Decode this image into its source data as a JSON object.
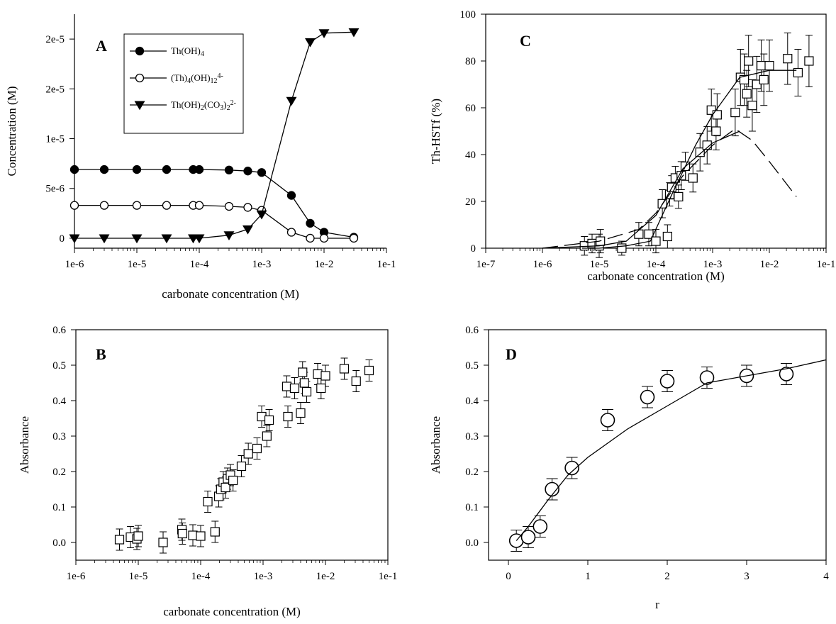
{
  "figure_title": "",
  "chart_data": [
    {
      "id": "A",
      "panel_label": "A",
      "type": "line",
      "xscale": "log",
      "xlim": [
        1e-06,
        0.1
      ],
      "ylim": [
        -1e-06,
        2.25e-05
      ],
      "xlabel": "carbonate concentration (M)",
      "ylabel": "Concentration (M)",
      "x_tick_labels": [
        "1e-6",
        "1e-5",
        "1e-4",
        "1e-3",
        "1e-2",
        "1e-1"
      ],
      "x_tick_values": [
        1e-06,
        1e-05,
        0.0001,
        0.001,
        0.01,
        0.1
      ],
      "y_tick_labels": [
        "0",
        "5e-6",
        "1e-5",
        "2e-5",
        "2e-5"
      ],
      "y_tick_values": [
        0,
        5e-06,
        1e-05,
        1.5e-05,
        2e-05
      ],
      "grid": false,
      "legend_position": "top-center",
      "legend": [
        {
          "marker": "filled-circle",
          "parts": [
            [
              "Th(OH)",
              ""
            ],
            [
              "4",
              "sub"
            ]
          ]
        },
        {
          "marker": "open-circle",
          "parts": [
            [
              "(Th)",
              ""
            ],
            [
              "4",
              "sub"
            ],
            [
              "(OH)",
              ""
            ],
            [
              "12",
              "sub"
            ],
            [
              "4-",
              "sup"
            ]
          ]
        },
        {
          "marker": "filled-triangle-down",
          "parts": [
            [
              "Th(OH)",
              ""
            ],
            [
              "2",
              "sub"
            ],
            [
              "(CO",
              ""
            ],
            [
              "3",
              "sub"
            ],
            [
              ")",
              ""
            ],
            [
              "2",
              "sub"
            ],
            [
              "2-",
              "sup"
            ]
          ]
        }
      ],
      "series": [
        {
          "marker": "filled-circle",
          "x": [
            1e-06,
            3e-06,
            1e-05,
            3e-05,
            8e-05,
            0.0001,
            0.0003,
            0.0006,
            0.001,
            0.003,
            0.006,
            0.01,
            0.03
          ],
          "y": [
            6.9e-06,
            6.9e-06,
            6.9e-06,
            6.9e-06,
            6.9e-06,
            6.9e-06,
            6.85e-06,
            6.75e-06,
            6.6e-06,
            4.3e-06,
            1.5e-06,
            6e-07,
            1e-07
          ]
        },
        {
          "marker": "open-circle",
          "x": [
            1e-06,
            3e-06,
            1e-05,
            3e-05,
            8e-05,
            0.0001,
            0.0003,
            0.0006,
            0.001,
            0.003,
            0.006,
            0.01,
            0.03
          ],
          "y": [
            3.3e-06,
            3.3e-06,
            3.3e-06,
            3.3e-06,
            3.3e-06,
            3.3e-06,
            3.2e-06,
            3.1e-06,
            2.8e-06,
            6e-07,
            0,
            0,
            0
          ]
        },
        {
          "marker": "filled-triangle-down",
          "x": [
            1e-06,
            3e-06,
            1e-05,
            3e-05,
            8e-05,
            0.0001,
            0.0003,
            0.0006,
            0.001,
            0.003,
            0.006,
            0.01,
            0.03
          ],
          "y": [
            0,
            0,
            0,
            0,
            0,
            0,
            3e-07,
            9e-07,
            2.4e-06,
            1.38e-05,
            1.97e-05,
            2.06e-05,
            2.07e-05
          ]
        }
      ]
    },
    {
      "id": "C",
      "panel_label": "C",
      "type": "scatter",
      "xscale": "log",
      "xlim": [
        1e-07,
        0.1
      ],
      "ylim": [
        0,
        100
      ],
      "xlabel": "carbonate concentration (M)",
      "ylabel": "Th-HSTf (%)",
      "x_tick_labels": [
        "1e-7",
        "1e-6",
        "1e-5",
        "1e-4",
        "1e-3",
        "1e-2",
        "1e-1"
      ],
      "x_tick_values": [
        1e-07,
        1e-06,
        1e-05,
        0.0001,
        0.001,
        0.01,
        0.1
      ],
      "y_tick_labels": [
        "0",
        "20",
        "40",
        "60",
        "80",
        "100"
      ],
      "y_tick_values": [
        0,
        20,
        40,
        60,
        80,
        100
      ],
      "grid": false,
      "series": [
        {
          "marker": "open-square",
          "x": [
            5.5e-06,
            7.5e-06,
            1e-05,
            1.05e-05,
            2.5e-05,
            5e-05,
            7.5e-05,
            0.0001,
            0.00013,
            0.00016,
            0.000175,
            0.00019,
            0.00022,
            0.00025,
            0.00028,
            0.00033,
            0.00045,
            0.0006,
            0.0008,
            0.00095,
            0.00115,
            0.0012,
            0.0025,
            0.0031,
            0.0036,
            0.004,
            0.0043,
            0.005,
            0.006,
            0.0072,
            0.008,
            0.01,
            0.021,
            0.032,
            0.05
          ],
          "y": [
            1,
            2,
            1,
            3,
            0,
            6,
            6,
            3,
            19,
            5,
            23,
            26,
            30,
            22,
            31,
            35,
            30,
            41,
            44,
            59,
            50,
            57,
            58,
            73,
            72,
            66,
            80,
            61,
            70,
            78,
            72,
            78,
            81,
            75,
            80
          ],
          "err": [
            4,
            4,
            5,
            5,
            3,
            5,
            5,
            5,
            6,
            5,
            5,
            5,
            5,
            5,
            6,
            6,
            6,
            8,
            8,
            9,
            8,
            9,
            10,
            12,
            11,
            10,
            11,
            11,
            12,
            11,
            11,
            11,
            11,
            10,
            11
          ]
        },
        {
          "style": "solid",
          "x": [
            5e-06,
            1e-05,
            3e-05,
            8e-05,
            0.0002,
            0.0005,
            0.001,
            0.003,
            0.01,
            0.03
          ],
          "y": [
            0,
            0,
            1,
            3,
            24,
            44,
            57,
            73,
            76,
            76
          ]
        },
        {
          "style": "solid",
          "x": [
            1e-06,
            1e-05,
            3e-05,
            0.0001,
            0.0003,
            0.001,
            0.003
          ],
          "y": [
            0,
            1,
            3,
            14,
            34,
            45,
            50
          ]
        },
        {
          "style": "dashed",
          "x": [
            1e-06,
            1e-05,
            5e-05,
            0.0001,
            0.0003,
            0.001,
            0.0025,
            0.005,
            0.01,
            0.03
          ],
          "y": [
            0,
            3,
            8,
            15,
            31,
            44,
            51,
            46,
            37,
            22
          ]
        }
      ]
    },
    {
      "id": "B",
      "panel_label": "B",
      "type": "scatter",
      "xscale": "log",
      "xlim": [
        1e-06,
        0.1
      ],
      "ylim": [
        -0.05,
        0.6
      ],
      "xlabel": "carbonate concentration (M)",
      "ylabel": "Absorbance",
      "x_tick_labels": [
        "1e-6",
        "1e-5",
        "1e-4",
        "1e-3",
        "1e-2",
        "1e-1"
      ],
      "x_tick_values": [
        1e-06,
        1e-05,
        0.0001,
        0.001,
        0.01,
        0.1
      ],
      "y_tick_labels": [
        "0.0",
        "0.1",
        "0.2",
        "0.3",
        "0.4",
        "0.5",
        "0.6"
      ],
      "y_tick_values": [
        0,
        0.1,
        0.2,
        0.3,
        0.4,
        0.5,
        0.6
      ],
      "grid": false,
      "series": [
        {
          "marker": "open-square",
          "x": [
            5e-06,
            7.5e-06,
            9.5e-06,
            1e-05,
            2.5e-05,
            5e-05,
            5.1e-05,
            7.5e-05,
            0.0001,
            0.00013,
            0.00017,
            0.000195,
            0.00021,
            0.00023,
            0.00025,
            0.00027,
            0.0003,
            0.00033,
            0.00045,
            0.00058,
            0.0008,
            0.00095,
            0.00115,
            0.00125,
            0.0024,
            0.0025,
            0.0032,
            0.004,
            0.0043,
            0.0046,
            0.005,
            0.0075,
            0.0085,
            0.01,
            0.02,
            0.031,
            0.05
          ],
          "y": [
            0.008,
            0.015,
            0.01,
            0.018,
            0.0,
            0.036,
            0.025,
            0.02,
            0.018,
            0.115,
            0.03,
            0.13,
            0.15,
            0.17,
            0.155,
            0.18,
            0.19,
            0.175,
            0.215,
            0.25,
            0.265,
            0.355,
            0.3,
            0.345,
            0.44,
            0.355,
            0.435,
            0.365,
            0.48,
            0.45,
            0.425,
            0.475,
            0.435,
            0.47,
            0.49,
            0.455,
            0.485
          ],
          "err": [
            0.03,
            0.03,
            0.03,
            0.03,
            0.03,
            0.03,
            0.03,
            0.03,
            0.03,
            0.03,
            0.03,
            0.03,
            0.03,
            0.03,
            0.03,
            0.03,
            0.03,
            0.03,
            0.03,
            0.03,
            0.03,
            0.03,
            0.03,
            0.03,
            0.03,
            0.03,
            0.03,
            0.03,
            0.03,
            0.03,
            0.03,
            0.03,
            0.03,
            0.03,
            0.03,
            0.03,
            0.03
          ]
        }
      ]
    },
    {
      "id": "D",
      "panel_label": "D",
      "type": "scatter",
      "xscale": "linear",
      "xlim": [
        -0.25,
        4
      ],
      "ylim": [
        -0.05,
        0.6
      ],
      "xlabel": "r",
      "ylabel": "Absorbance",
      "x_tick_labels": [
        "0",
        "1",
        "2",
        "3",
        "4"
      ],
      "x_tick_values": [
        0,
        1,
        2,
        3,
        4
      ],
      "y_tick_labels": [
        "0.0",
        "0.1",
        "0.2",
        "0.3",
        "0.4",
        "0.5",
        "0.6"
      ],
      "y_tick_values": [
        0,
        0.1,
        0.2,
        0.3,
        0.4,
        0.5,
        0.6
      ],
      "grid": false,
      "series": [
        {
          "marker": "open-circle",
          "x": [
            0.1,
            0.25,
            0.4,
            0.55,
            0.8,
            1.25,
            1.75,
            2.0,
            2.5,
            3.0,
            3.5
          ],
          "y": [
            0.005,
            0.015,
            0.045,
            0.15,
            0.21,
            0.345,
            0.41,
            0.455,
            0.465,
            0.47,
            0.475
          ],
          "err": [
            0.03,
            0.03,
            0.03,
            0.03,
            0.03,
            0.03,
            0.03,
            0.03,
            0.03,
            0.03,
            0.03
          ]
        },
        {
          "style": "solid",
          "x": [
            0.1,
            0.25,
            0.5,
            0.75,
            1.0,
            1.25,
            1.5,
            2.0,
            2.5,
            3.0,
            3.5,
            4.0
          ],
          "y": [
            0.005,
            0.045,
            0.12,
            0.19,
            0.24,
            0.28,
            0.32,
            0.385,
            0.45,
            0.47,
            0.49,
            0.515
          ]
        }
      ]
    }
  ]
}
